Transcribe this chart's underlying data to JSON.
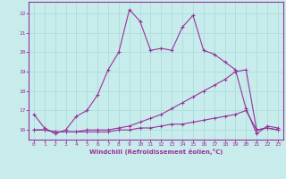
{
  "xlabel": "Windchill (Refroidissement éolien,°C)",
  "bg_color": "#c8ecec",
  "line_color": "#993399",
  "grid_color": "#aadddd",
  "xlim": [
    -0.5,
    23.5
  ],
  "ylim": [
    15.5,
    22.6
  ],
  "yticks": [
    16,
    17,
    18,
    19,
    20,
    21,
    22
  ],
  "xticks": [
    0,
    1,
    2,
    3,
    4,
    5,
    6,
    7,
    8,
    9,
    10,
    11,
    12,
    13,
    14,
    15,
    16,
    17,
    18,
    19,
    20,
    21,
    22,
    23
  ],
  "line1_x": [
    0,
    1,
    2,
    3,
    4,
    5,
    6,
    7,
    8,
    9,
    10,
    11,
    12,
    13,
    14,
    15,
    16,
    17,
    18,
    19,
    20,
    21,
    22,
    23
  ],
  "line1_y": [
    16.8,
    16.1,
    15.8,
    16.0,
    16.7,
    17.0,
    17.8,
    19.1,
    20.0,
    22.2,
    21.6,
    20.1,
    20.2,
    20.1,
    21.3,
    21.9,
    20.1,
    19.9,
    19.5,
    19.1,
    17.1,
    15.8,
    16.2,
    16.1
  ],
  "line2_x": [
    0,
    1,
    2,
    3,
    4,
    5,
    6,
    7,
    8,
    9,
    10,
    11,
    12,
    13,
    14,
    15,
    16,
    17,
    18,
    19,
    20,
    21,
    22,
    23
  ],
  "line2_y": [
    16.0,
    16.0,
    15.9,
    15.9,
    15.9,
    16.0,
    16.0,
    16.0,
    16.1,
    16.2,
    16.4,
    16.6,
    16.8,
    17.1,
    17.4,
    17.7,
    18.0,
    18.3,
    18.6,
    19.0,
    19.1,
    16.0,
    16.1,
    16.0
  ],
  "line3_x": [
    0,
    1,
    2,
    3,
    4,
    5,
    6,
    7,
    8,
    9,
    10,
    11,
    12,
    13,
    14,
    15,
    16,
    17,
    18,
    19,
    20,
    21,
    22,
    23
  ],
  "line3_y": [
    16.0,
    16.0,
    15.9,
    15.9,
    15.9,
    15.9,
    15.9,
    15.9,
    16.0,
    16.0,
    16.1,
    16.1,
    16.2,
    16.3,
    16.3,
    16.4,
    16.5,
    16.6,
    16.7,
    16.8,
    17.0,
    16.0,
    16.1,
    16.0
  ]
}
